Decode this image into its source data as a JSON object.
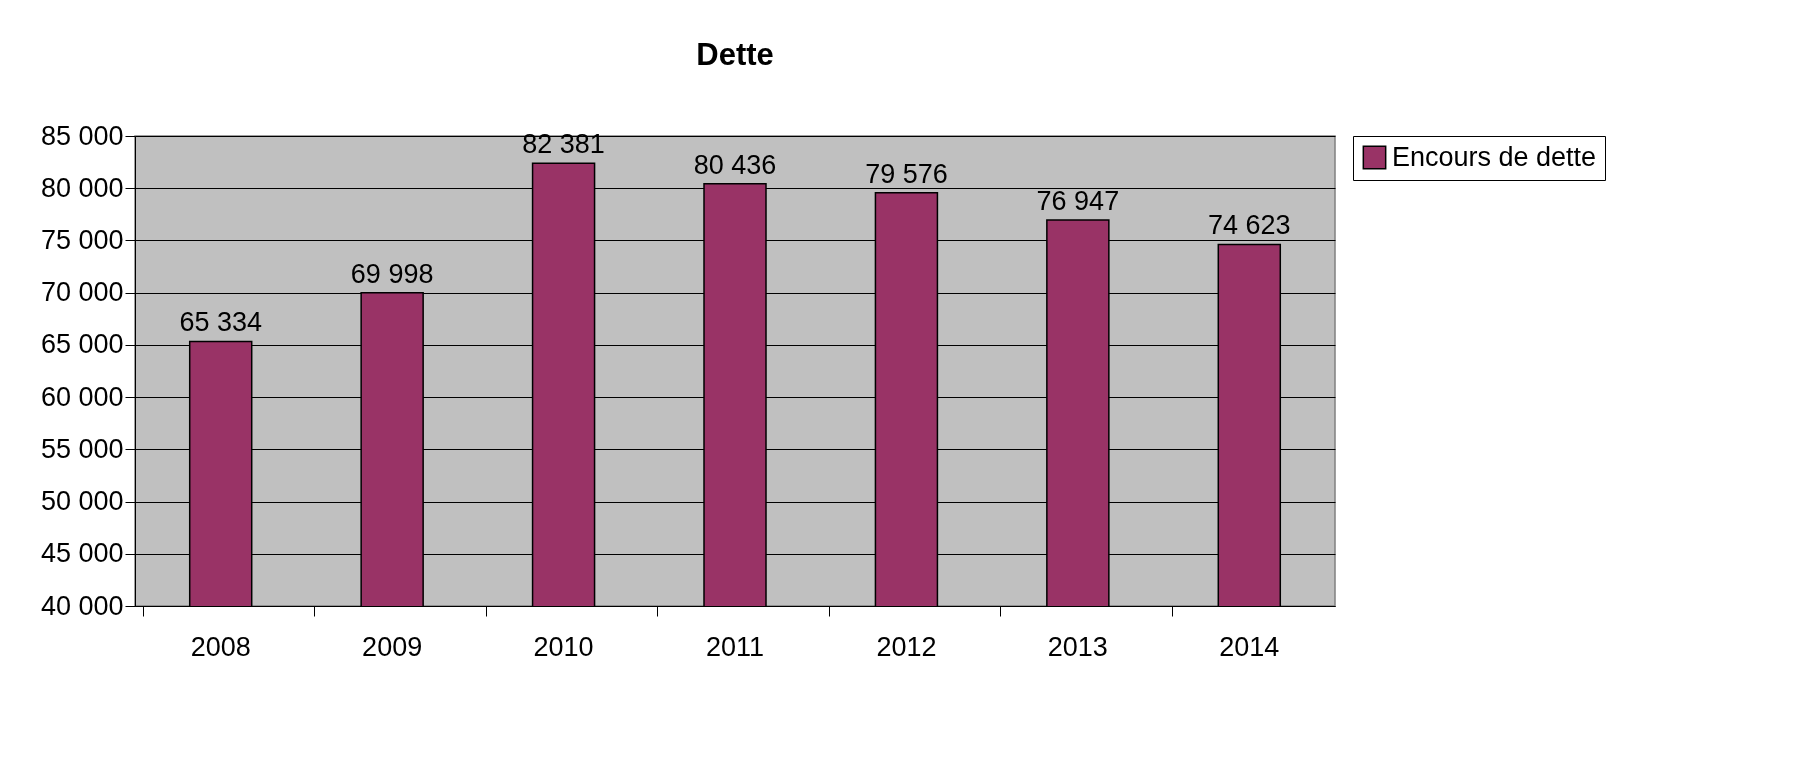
{
  "chart_data": {
    "type": "bar",
    "title": "Dette",
    "categories": [
      "2008",
      "2009",
      "2010",
      "2011",
      "2012",
      "2013",
      "2014"
    ],
    "series": [
      {
        "name": "Encours de dette",
        "color": "#993366",
        "values": [
          65334,
          69998,
          82381,
          80436,
          79576,
          76947,
          74623
        ]
      }
    ],
    "value_labels": [
      "65 334",
      "69 998",
      "82 381",
      "80 436",
      "79 576",
      "76 947",
      "74 623"
    ],
    "ylim": [
      40000,
      85000
    ],
    "yticks": [
      {
        "value": 40000,
        "label": "40 000"
      },
      {
        "value": 45000,
        "label": "45 000"
      },
      {
        "value": 50000,
        "label": "50 000"
      },
      {
        "value": 55000,
        "label": "55 000"
      },
      {
        "value": 60000,
        "label": "60 000"
      },
      {
        "value": 65000,
        "label": "65 000"
      },
      {
        "value": 70000,
        "label": "70 000"
      },
      {
        "value": 75000,
        "label": "75 000"
      },
      {
        "value": 80000,
        "label": "80 000"
      },
      {
        "value": 85000,
        "label": "85 000"
      }
    ],
    "grid": "y",
    "legend": "right"
  }
}
